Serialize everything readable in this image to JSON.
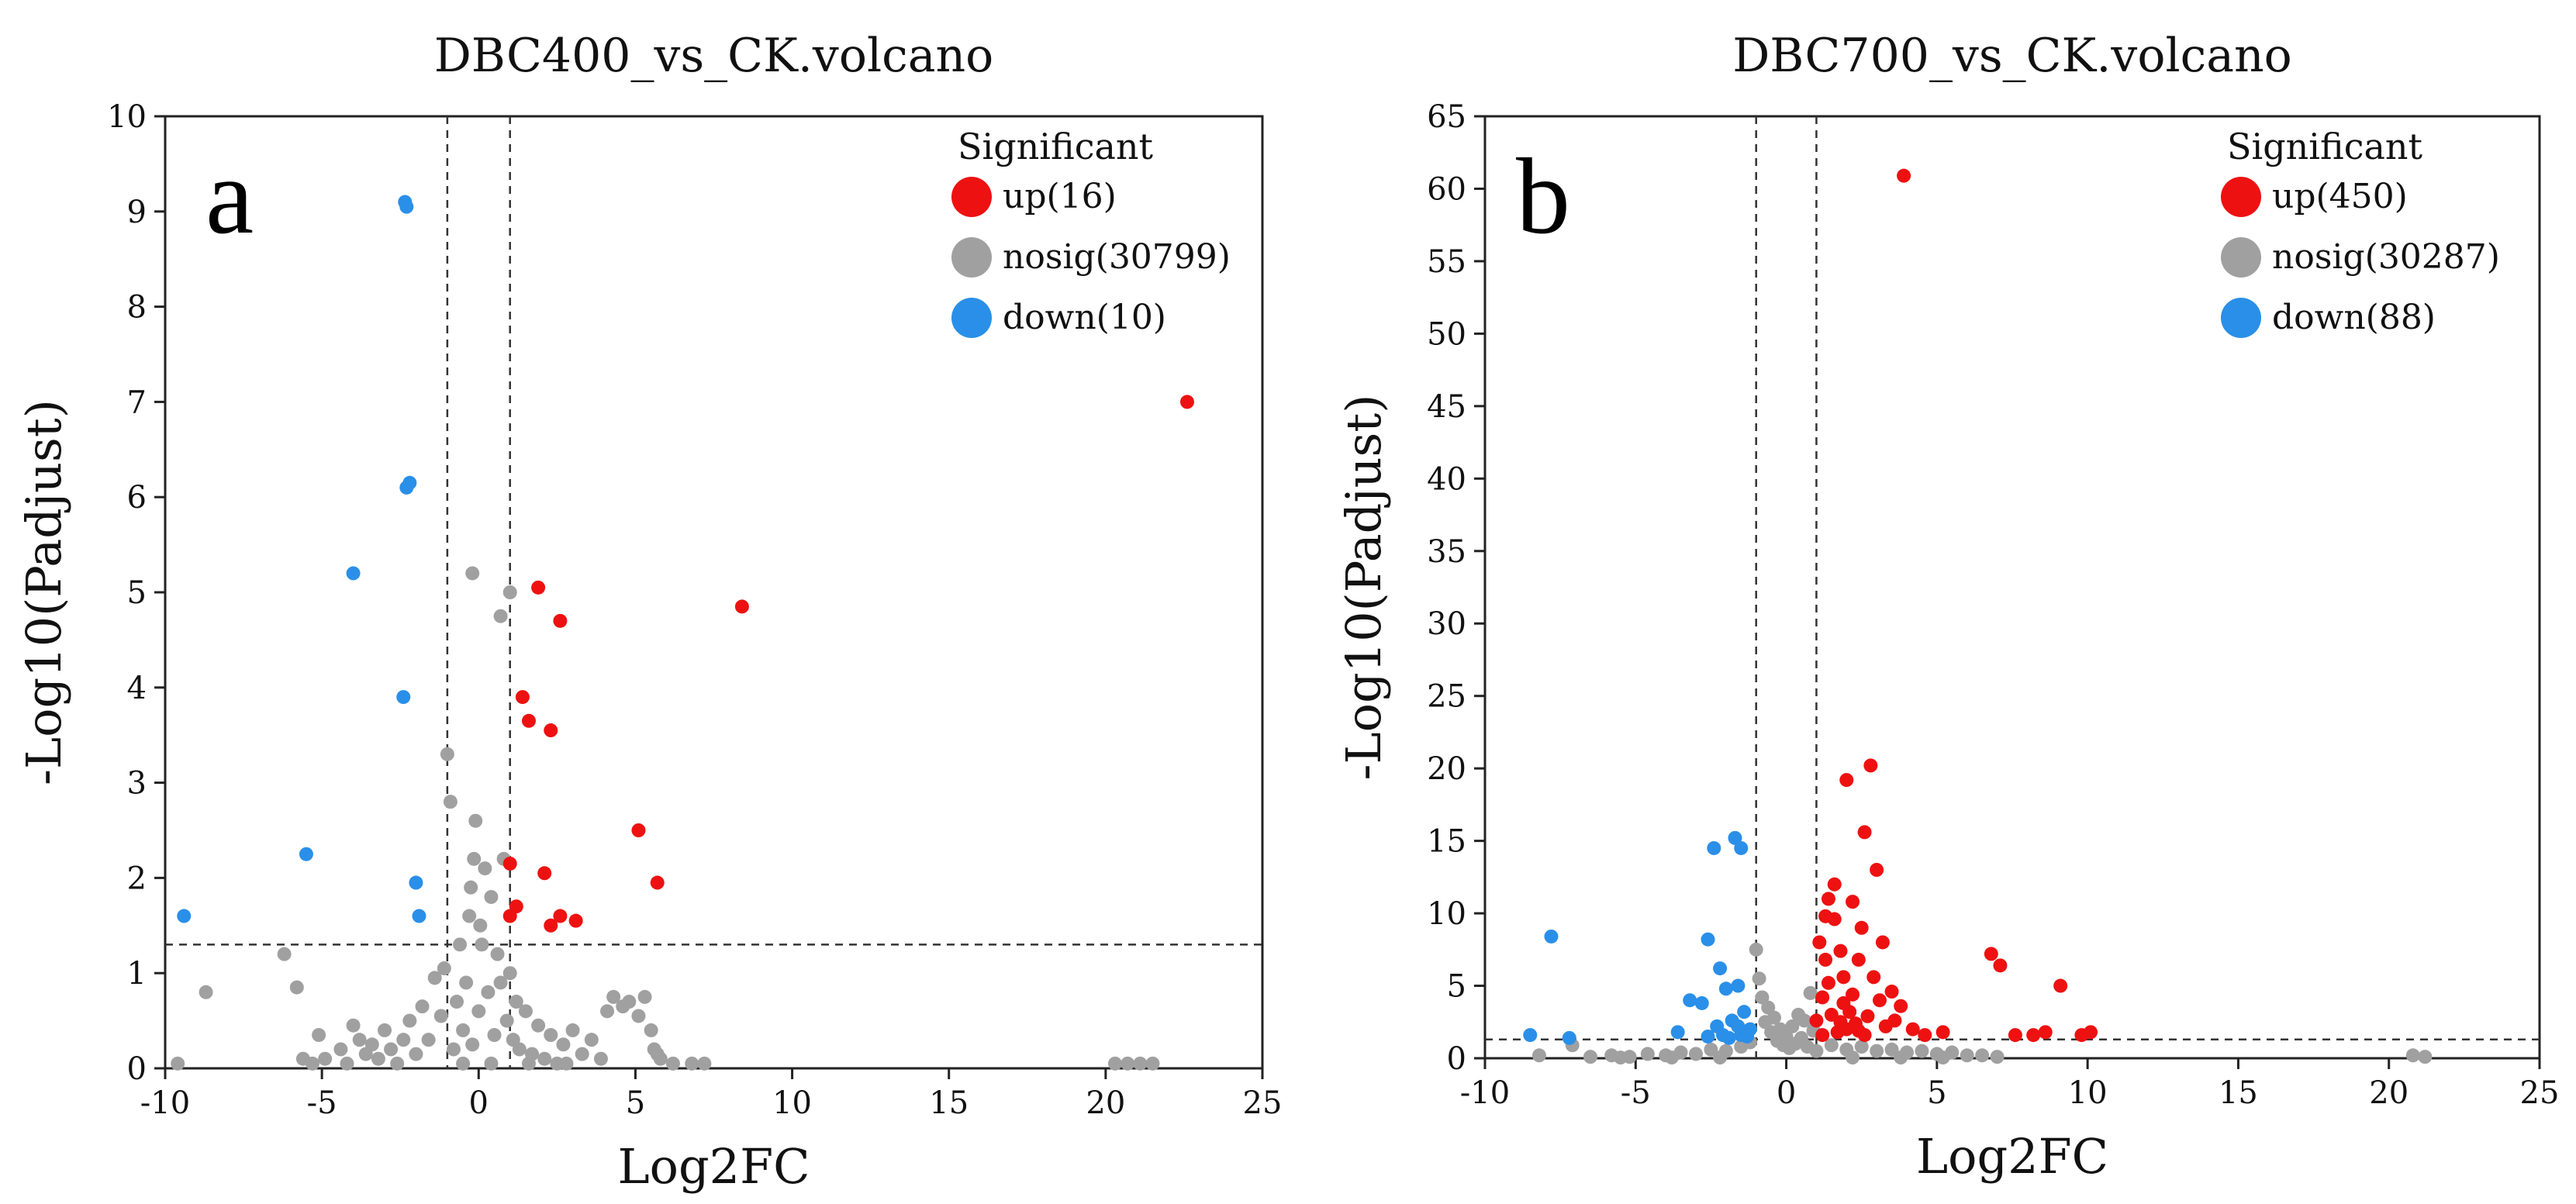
{
  "chart_data": [
    {
      "type": "scatter",
      "title": "DBC400_vs_CK.volcano",
      "panel_label": "a",
      "xlabel": "Log2FC",
      "ylabel": "-Log10(Padjust)",
      "xlim": [
        -10,
        25
      ],
      "ylim": [
        0,
        10
      ],
      "xticks": [
        -10,
        -5,
        0,
        5,
        10,
        15,
        20,
        25
      ],
      "yticks": [
        0,
        1,
        2,
        3,
        4,
        5,
        6,
        7,
        8,
        9,
        10
      ],
      "thresholds": {
        "x": [
          -1,
          1
        ],
        "y": 1.3
      },
      "legend": {
        "title": "Significant",
        "items": [
          {
            "key": "up",
            "label": "up(16)",
            "color": "#ee1111"
          },
          {
            "key": "nosig",
            "label": "nosig(30799)",
            "color": "#a0a0a0"
          },
          {
            "key": "down",
            "label": "down(10)",
            "color": "#2a8fe8"
          }
        ]
      },
      "series": [
        {
          "name": "nosig",
          "color": "#a0a0a0",
          "points": [
            [
              -9.6,
              0.05
            ],
            [
              -8.7,
              0.8
            ],
            [
              -6.2,
              1.2
            ],
            [
              -5.8,
              0.85
            ],
            [
              -5.6,
              0.1
            ],
            [
              -5.3,
              0.05
            ],
            [
              -5.1,
              0.35
            ],
            [
              -4.9,
              0.1
            ],
            [
              -4.4,
              0.2
            ],
            [
              -4.2,
              0.05
            ],
            [
              -4,
              0.45
            ],
            [
              -3.8,
              0.3
            ],
            [
              -3.6,
              0.15
            ],
            [
              -3.4,
              0.25
            ],
            [
              -3.2,
              0.1
            ],
            [
              -3,
              0.4
            ],
            [
              -2.8,
              0.2
            ],
            [
              -2.6,
              0.05
            ],
            [
              -2.4,
              0.3
            ],
            [
              -2.2,
              0.5
            ],
            [
              -2,
              0.15
            ],
            [
              -1.8,
              0.65
            ],
            [
              -1.6,
              0.3
            ],
            [
              -1.4,
              0.95
            ],
            [
              -1.2,
              0.55
            ],
            [
              -1.1,
              1.05
            ],
            [
              -1,
              3.3
            ],
            [
              -0.9,
              2.8
            ],
            [
              -0.8,
              0.2
            ],
            [
              -0.7,
              0.7
            ],
            [
              -0.6,
              1.3
            ],
            [
              -0.5,
              0.4
            ],
            [
              -0.4,
              0.9
            ],
            [
              -0.3,
              1.6
            ],
            [
              -0.25,
              1.9
            ],
            [
              -0.2,
              0.25
            ],
            [
              -0.1,
              2.6
            ],
            [
              0,
              0.6
            ],
            [
              0.1,
              1.3
            ],
            [
              0.2,
              2.1
            ],
            [
              0.3,
              0.8
            ],
            [
              0.4,
              1.8
            ],
            [
              0.5,
              0.35
            ],
            [
              0.6,
              1.2
            ],
            [
              0.7,
              0.9
            ],
            [
              0.8,
              2.2
            ],
            [
              0.9,
              0.5
            ],
            [
              1,
              1.0
            ],
            [
              1.1,
              0.3
            ],
            [
              1.2,
              0.7
            ],
            [
              1.3,
              0.2
            ],
            [
              1.5,
              0.6
            ],
            [
              1.7,
              0.15
            ],
            [
              1.9,
              0.45
            ],
            [
              2.1,
              0.1
            ],
            [
              2.3,
              0.35
            ],
            [
              2.5,
              0.05
            ],
            [
              2.7,
              0.25
            ],
            [
              3,
              0.4
            ],
            [
              3.3,
              0.15
            ],
            [
              3.6,
              0.3
            ],
            [
              3.9,
              0.1
            ],
            [
              4.1,
              0.6
            ],
            [
              4.3,
              0.75
            ],
            [
              4.6,
              0.65
            ],
            [
              4.8,
              0.7
            ],
            [
              5.1,
              0.55
            ],
            [
              5.3,
              0.75
            ],
            [
              5.5,
              0.4
            ],
            [
              5.6,
              0.2
            ],
            [
              5.7,
              0.15
            ],
            [
              5.8,
              0.1
            ],
            [
              6.2,
              0.05
            ],
            [
              6.8,
              0.05
            ],
            [
              7.2,
              0.05
            ],
            [
              -0.2,
              5.2
            ],
            [
              1.0,
              5.0
            ],
            [
              0.7,
              4.75
            ],
            [
              -0.15,
              2.2
            ],
            [
              0.05,
              1.5
            ],
            [
              0.4,
              0.05
            ],
            [
              -0.5,
              0.05
            ],
            [
              1.6,
              0.05
            ],
            [
              2.8,
              0.05
            ],
            [
              20.3,
              0.05
            ],
            [
              20.7,
              0.05
            ],
            [
              21.1,
              0.05
            ],
            [
              21.5,
              0.05
            ]
          ]
        },
        {
          "name": "up",
          "color": "#ee1111",
          "points": [
            [
              22.6,
              7.0
            ],
            [
              8.4,
              4.85
            ],
            [
              1.9,
              5.05
            ],
            [
              2.6,
              4.7
            ],
            [
              1.4,
              3.9
            ],
            [
              1.6,
              3.65
            ],
            [
              2.3,
              3.55
            ],
            [
              5.1,
              2.5
            ],
            [
              5.7,
              1.95
            ],
            [
              2.1,
              2.05
            ],
            [
              1.0,
              2.15
            ],
            [
              1.2,
              1.7
            ],
            [
              1.0,
              1.6
            ],
            [
              2.6,
              1.6
            ],
            [
              3.1,
              1.55
            ],
            [
              2.3,
              1.5
            ]
          ]
        },
        {
          "name": "down",
          "color": "#2a8fe8",
          "points": [
            [
              -2.3,
              9.05
            ],
            [
              -2.3,
              6.1
            ],
            [
              -4.0,
              5.2
            ],
            [
              -2.4,
              3.9
            ],
            [
              -5.5,
              2.25
            ],
            [
              -2.0,
              1.95
            ],
            [
              -1.9,
              1.6
            ],
            [
              -9.4,
              1.6
            ],
            [
              -2.35,
              9.1
            ],
            [
              -2.2,
              6.15
            ]
          ]
        }
      ]
    },
    {
      "type": "scatter",
      "title": "DBC700_vs_CK.volcano",
      "panel_label": "b",
      "xlabel": "Log2FC",
      "ylabel": "-Log10(Padjust)",
      "xlim": [
        -10,
        25
      ],
      "ylim": [
        0,
        65
      ],
      "xticks": [
        -10,
        -5,
        0,
        5,
        10,
        15,
        20,
        25
      ],
      "yticks": [
        0,
        5,
        10,
        15,
        20,
        25,
        30,
        35,
        40,
        45,
        50,
        55,
        60,
        65
      ],
      "thresholds": {
        "x": [
          -1,
          1
        ],
        "y": 1.3
      },
      "legend": {
        "title": "Significant",
        "items": [
          {
            "key": "up",
            "label": "up(450)",
            "color": "#ee1111"
          },
          {
            "key": "nosig",
            "label": "nosig(30287)",
            "color": "#a0a0a0"
          },
          {
            "key": "down",
            "label": "down(88)",
            "color": "#2a8fe8"
          }
        ]
      },
      "series": [
        {
          "name": "nosig",
          "color": "#a0a0a0",
          "points": [
            [
              -8.2,
              0.2
            ],
            [
              -7.1,
              0.9
            ],
            [
              -6.5,
              0.1
            ],
            [
              -5.8,
              0.2
            ],
            [
              -5.2,
              0.1
            ],
            [
              -4.6,
              0.3
            ],
            [
              -4,
              0.2
            ],
            [
              -3.5,
              0.4
            ],
            [
              -3,
              0.3
            ],
            [
              -2.5,
              0.6
            ],
            [
              -2,
              0.5
            ],
            [
              -1.5,
              0.8
            ],
            [
              -1.2,
              1.1
            ],
            [
              -1,
              7.5
            ],
            [
              -0.9,
              5.5
            ],
            [
              -0.8,
              4.2
            ],
            [
              -0.7,
              2.5
            ],
            [
              -0.6,
              3.5
            ],
            [
              -0.5,
              1.8
            ],
            [
              -0.4,
              2.8
            ],
            [
              -0.3,
              1.2
            ],
            [
              -0.2,
              2.0
            ],
            [
              -0.1,
              0.9
            ],
            [
              0,
              1.5
            ],
            [
              0.1,
              0.7
            ],
            [
              0.2,
              2.2
            ],
            [
              0.3,
              1.0
            ],
            [
              0.4,
              3.0
            ],
            [
              0.5,
              1.4
            ],
            [
              0.6,
              2.6
            ],
            [
              0.7,
              0.8
            ],
            [
              0.8,
              4.5
            ],
            [
              0.9,
              1.9
            ],
            [
              1,
              0.5
            ],
            [
              1.5,
              0.9
            ],
            [
              2,
              0.6
            ],
            [
              2.5,
              0.8
            ],
            [
              3,
              0.5
            ],
            [
              3.5,
              0.6
            ],
            [
              4,
              0.4
            ],
            [
              4.5,
              0.5
            ],
            [
              5,
              0.3
            ],
            [
              5.5,
              0.4
            ],
            [
              6,
              0.2
            ],
            [
              6.5,
              0.2
            ],
            [
              7,
              0.1
            ],
            [
              20.8,
              0.2
            ],
            [
              21.2,
              0.1
            ],
            [
              -5.5,
              0.05
            ],
            [
              -3.8,
              0.05
            ],
            [
              -2.2,
              0.05
            ],
            [
              2.2,
              0.05
            ],
            [
              3.8,
              0.05
            ],
            [
              5.2,
              0.05
            ]
          ]
        },
        {
          "name": "up",
          "color": "#ee1111",
          "points": [
            [
              3.9,
              60.9
            ],
            [
              2.8,
              20.2
            ],
            [
              2.0,
              19.2
            ],
            [
              2.6,
              15.6
            ],
            [
              3.0,
              13.0
            ],
            [
              2.2,
              10.8
            ],
            [
              1.4,
              11.0
            ],
            [
              1.6,
              9.6
            ],
            [
              1.1,
              8.0
            ],
            [
              1.3,
              6.8
            ],
            [
              1.8,
              7.4
            ],
            [
              2.4,
              6.8
            ],
            [
              2.9,
              5.6
            ],
            [
              3.5,
              4.6
            ],
            [
              3.1,
              4.0
            ],
            [
              1.2,
              4.2
            ],
            [
              1.5,
              3.0
            ],
            [
              1.9,
              3.8
            ],
            [
              2.3,
              2.4
            ],
            [
              1.7,
              1.8
            ],
            [
              2.0,
              2.0
            ],
            [
              2.6,
              1.6
            ],
            [
              3.3,
              2.2
            ],
            [
              3.8,
              3.6
            ],
            [
              4.2,
              2.0
            ],
            [
              4.6,
              1.6
            ],
            [
              5.2,
              1.8
            ],
            [
              6.8,
              7.2
            ],
            [
              7.1,
              6.4
            ],
            [
              7.6,
              1.6
            ],
            [
              8.2,
              1.6
            ],
            [
              8.6,
              1.8
            ],
            [
              9.1,
              5.0
            ],
            [
              9.8,
              1.6
            ],
            [
              10.1,
              1.8
            ],
            [
              1.0,
              2.6
            ],
            [
              1.2,
              1.6
            ],
            [
              1.4,
              5.2
            ],
            [
              1.6,
              12.0
            ],
            [
              2.1,
              3.2
            ],
            [
              2.5,
              9.0
            ],
            [
              3.2,
              8.0
            ],
            [
              2.7,
              2.9
            ],
            [
              1.9,
              5.6
            ],
            [
              2.2,
              4.4
            ],
            [
              1.3,
              9.8
            ],
            [
              1.8,
              2.5
            ],
            [
              2.4,
              1.9
            ],
            [
              3.6,
              2.6
            ]
          ]
        },
        {
          "name": "down",
          "color": "#2a8fe8",
          "points": [
            [
              -1.7,
              15.2
            ],
            [
              -1.5,
              14.5
            ],
            [
              -2.4,
              14.5
            ],
            [
              -2.6,
              8.2
            ],
            [
              -7.8,
              8.4
            ],
            [
              -2.2,
              6.2
            ],
            [
              -2.0,
              4.8
            ],
            [
              -1.6,
              5.0
            ],
            [
              -3.2,
              4.0
            ],
            [
              -2.8,
              3.8
            ],
            [
              -1.4,
              3.2
            ],
            [
              -1.8,
              2.6
            ],
            [
              -2.3,
              2.2
            ],
            [
              -3.6,
              1.8
            ],
            [
              -1.2,
              2.0
            ],
            [
              -1.5,
              1.6
            ],
            [
              -8.5,
              1.6
            ],
            [
              -7.2,
              1.4
            ],
            [
              -2.6,
              1.5
            ],
            [
              -1.9,
              1.4
            ],
            [
              -1.3,
              1.5
            ],
            [
              -2.1,
              1.6
            ],
            [
              -1.6,
              2.2
            ]
          ]
        }
      ]
    }
  ]
}
